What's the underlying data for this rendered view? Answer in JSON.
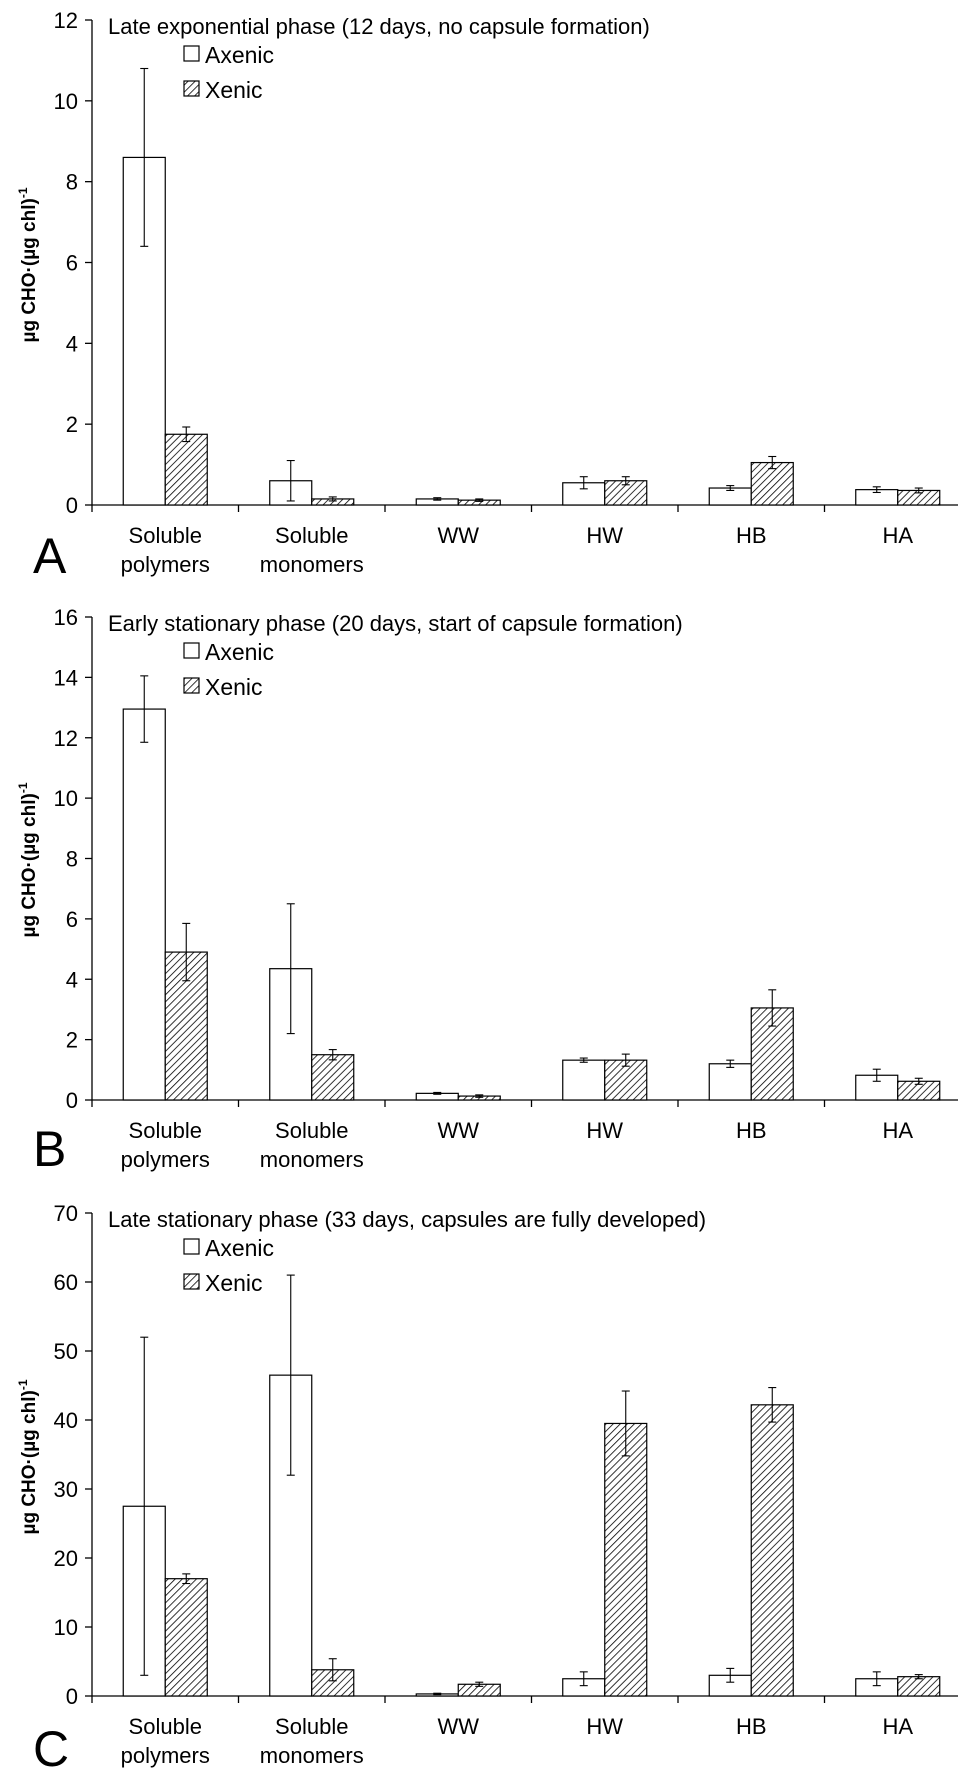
{
  "colors": {
    "axenic_fill": "#ffffff",
    "xenic_hatch": "#000000",
    "axis": "#000000"
  },
  "chart_data": [
    {
      "panel_label": "A",
      "type": "bar",
      "title": "Late exponential phase (12 days, no capsule formation)",
      "ylabel": "µg CHO·(µg chl)",
      "ylabel_sup": "-1",
      "ylim": [
        0,
        12
      ],
      "yticks": [
        0,
        2,
        4,
        6,
        8,
        10,
        12
      ],
      "categories": [
        [
          "Soluble",
          "polymers"
        ],
        [
          "Soluble",
          "monomers"
        ],
        [
          "WW"
        ],
        [
          "HW"
        ],
        [
          "HB"
        ],
        [
          "HA"
        ]
      ],
      "legend_position": "top-left",
      "series": [
        {
          "name": "Axenic",
          "pattern": "open",
          "values": [
            8.6,
            0.6,
            0.15,
            0.55,
            0.42,
            0.38
          ],
          "errors": [
            2.2,
            0.5,
            0.03,
            0.15,
            0.06,
            0.07
          ]
        },
        {
          "name": "Xenic",
          "pattern": "hatched",
          "values": [
            1.75,
            0.15,
            0.12,
            0.6,
            1.05,
            0.36
          ],
          "errors": [
            0.18,
            0.05,
            0.03,
            0.1,
            0.15,
            0.06
          ]
        }
      ]
    },
    {
      "panel_label": "B",
      "type": "bar",
      "title": "Early stationary phase (20 days, start of capsule formation)",
      "ylabel": "µg CHO·(µg chl)",
      "ylabel_sup": "-1",
      "ylim": [
        0,
        16
      ],
      "yticks": [
        0,
        2,
        4,
        6,
        8,
        10,
        12,
        14,
        16
      ],
      "categories": [
        [
          "Soluble",
          "polymers"
        ],
        [
          "Soluble",
          "monomers"
        ],
        [
          "WW"
        ],
        [
          "HW"
        ],
        [
          "HB"
        ],
        [
          "HA"
        ]
      ],
      "legend_position": "top-left",
      "series": [
        {
          "name": "Axenic",
          "pattern": "open",
          "values": [
            12.95,
            4.35,
            0.22,
            1.32,
            1.2,
            0.82
          ],
          "errors": [
            1.1,
            2.15,
            0.03,
            0.07,
            0.12,
            0.2
          ]
        },
        {
          "name": "Xenic",
          "pattern": "hatched",
          "values": [
            4.9,
            1.5,
            0.13,
            1.32,
            3.05,
            0.62
          ],
          "errors": [
            0.95,
            0.17,
            0.04,
            0.2,
            0.6,
            0.1
          ]
        }
      ]
    },
    {
      "panel_label": "C",
      "type": "bar",
      "title": "Late stationary phase (33 days, capsules are fully developed)",
      "ylabel": "µg CHO·(µg chl)",
      "ylabel_sup": "-1",
      "ylim": [
        0,
        70
      ],
      "yticks": [
        0,
        10,
        20,
        30,
        40,
        50,
        60,
        70
      ],
      "categories": [
        [
          "Soluble",
          "polymers"
        ],
        [
          "Soluble",
          "monomers"
        ],
        [
          "WW"
        ],
        [
          "HW"
        ],
        [
          "HB"
        ],
        [
          "HA"
        ]
      ],
      "legend_position": "top-left",
      "series": [
        {
          "name": "Axenic",
          "pattern": "open",
          "values": [
            27.5,
            46.5,
            0.3,
            2.5,
            3.0,
            2.5
          ],
          "errors": [
            24.5,
            14.5,
            0.1,
            1.0,
            1.0,
            1.0
          ]
        },
        {
          "name": "Xenic",
          "pattern": "hatched",
          "values": [
            17.0,
            3.8,
            1.7,
            39.5,
            42.2,
            2.8
          ],
          "errors": [
            0.7,
            1.6,
            0.3,
            4.7,
            2.5,
            0.3
          ]
        }
      ]
    }
  ]
}
